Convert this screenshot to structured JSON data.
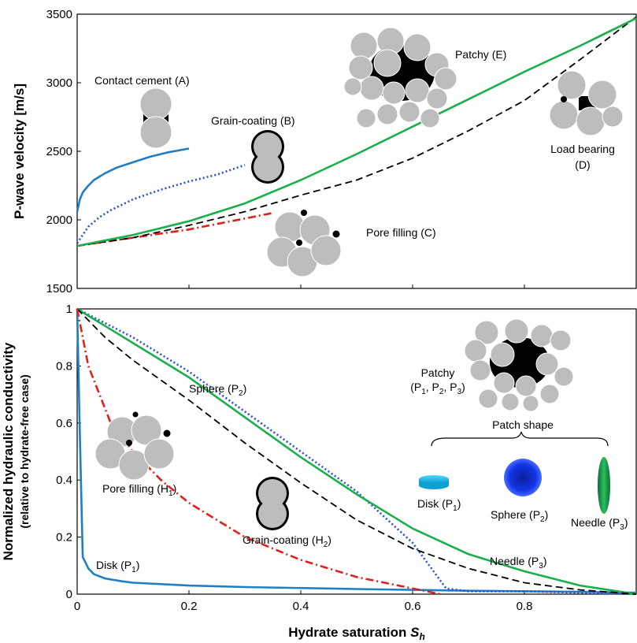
{
  "chart_data": [
    {
      "type": "line",
      "panel": "top",
      "ylabel": "P-wave velocity [m/s]",
      "xlim": [
        0,
        1
      ],
      "ylim": [
        1500,
        3500
      ],
      "yticks": [
        "1500",
        "2000",
        "2500",
        "3000",
        "3500"
      ],
      "series": [
        {
          "name": "Contact cement (A)",
          "color": "#1f7fc6",
          "dash": "solid",
          "x": [
            0,
            0.005,
            0.01,
            0.02,
            0.03,
            0.05,
            0.07,
            0.1,
            0.13,
            0.16,
            0.2
          ],
          "y": [
            2060,
            2150,
            2200,
            2250,
            2290,
            2340,
            2380,
            2420,
            2460,
            2490,
            2520
          ]
        },
        {
          "name": "Grain-coating (B)",
          "color": "#2a4fd6",
          "dash": "dotted",
          "x": [
            0,
            0.02,
            0.04,
            0.06,
            0.08,
            0.1,
            0.15,
            0.2,
            0.25,
            0.3
          ],
          "y": [
            1830,
            1950,
            2020,
            2070,
            2110,
            2150,
            2220,
            2280,
            2330,
            2400
          ]
        },
        {
          "name": "Pore filling (C)",
          "color": "#e0201c",
          "dash": "dashdot",
          "x": [
            0,
            0.05,
            0.1,
            0.15,
            0.2,
            0.25,
            0.3,
            0.35
          ],
          "y": [
            1810,
            1840,
            1870,
            1900,
            1930,
            1970,
            2010,
            2050
          ]
        },
        {
          "name": "Load bearing (D)",
          "color": "#000000",
          "dash": "dashed",
          "x": [
            0,
            0.1,
            0.2,
            0.3,
            0.4,
            0.5,
            0.6,
            0.7,
            0.8,
            0.9,
            1.0
          ],
          "y": [
            1810,
            1870,
            1960,
            2060,
            2180,
            2290,
            2450,
            2650,
            2870,
            3170,
            3480
          ]
        },
        {
          "name": "Patchy (E)",
          "color": "#19b04b",
          "dash": "solid",
          "x": [
            0,
            0.1,
            0.2,
            0.3,
            0.4,
            0.5,
            0.6,
            0.7,
            0.8,
            0.9,
            1.0
          ],
          "y": [
            1810,
            1890,
            1990,
            2120,
            2290,
            2480,
            2680,
            2880,
            3080,
            3270,
            3470
          ]
        }
      ],
      "annotations": {
        "contact_cement": "Contact cement (A)",
        "grain_coating": "Grain-coating (B)",
        "patchy": "Patchy (E)",
        "load_bearing_1": "Load bearing",
        "load_bearing_2": "(D)",
        "pore_filling": "Pore filling (C)"
      }
    },
    {
      "type": "line",
      "panel": "bottom",
      "xlabel": "Hydrate saturation",
      "xlabel_symbol": "S",
      "xlabel_sub": "h",
      "ylabel": "Normalized hydraulic conductivity",
      "ylabel2": "(relative to hydrate-free case)",
      "xlim": [
        0,
        1
      ],
      "ylim": [
        0,
        1
      ],
      "xticks": [
        "0",
        "0.2",
        "0.4",
        "0.6",
        "0.8"
      ],
      "yticks": [
        "0",
        "0.2",
        "0.4",
        "0.6",
        "0.8",
        "1"
      ],
      "series": [
        {
          "name": "Disk (P1)",
          "color": "#1f7fc6",
          "dash": "solid",
          "x": [
            0,
            0.005,
            0.01,
            0.015,
            0.02,
            0.03,
            0.05,
            0.08,
            0.1,
            0.2,
            0.3,
            0.5,
            0.7,
            0.9,
            1.0
          ],
          "y": [
            1.0,
            0.55,
            0.13,
            0.11,
            0.09,
            0.07,
            0.055,
            0.045,
            0.04,
            0.03,
            0.025,
            0.018,
            0.012,
            0.008,
            0.005
          ]
        },
        {
          "name": "Sphere (P2)",
          "color": "#2a4fd6",
          "dash": "dotted",
          "x": [
            0,
            0.05,
            0.1,
            0.2,
            0.3,
            0.4,
            0.5,
            0.55,
            0.6,
            0.63,
            0.66,
            0.7,
            0.8,
            0.9,
            1.0
          ],
          "y": [
            1.0,
            0.95,
            0.9,
            0.78,
            0.64,
            0.5,
            0.36,
            0.27,
            0.18,
            0.1,
            0.02,
            0.01,
            0.01,
            0.005,
            0.0
          ]
        },
        {
          "name": "Needle (P3)",
          "color": "#19b04b",
          "dash": "solid",
          "x": [
            0,
            0.05,
            0.1,
            0.2,
            0.3,
            0.4,
            0.5,
            0.6,
            0.7,
            0.8,
            0.9,
            1.0
          ],
          "y": [
            1.0,
            0.94,
            0.88,
            0.76,
            0.62,
            0.48,
            0.35,
            0.23,
            0.14,
            0.08,
            0.03,
            0.0
          ]
        },
        {
          "name": "Grain-coating (H2)",
          "color": "#000000",
          "dash": "dashed",
          "x": [
            0,
            0.05,
            0.1,
            0.2,
            0.3,
            0.4,
            0.5,
            0.6,
            0.7,
            0.8,
            0.9,
            1.0
          ],
          "y": [
            1.0,
            0.9,
            0.82,
            0.68,
            0.53,
            0.39,
            0.26,
            0.16,
            0.09,
            0.04,
            0.015,
            0.0
          ]
        },
        {
          "name": "Pore filling (H1)",
          "color": "#e0201c",
          "dash": "dashdot",
          "x": [
            0,
            0.02,
            0.04,
            0.06,
            0.1,
            0.15,
            0.2,
            0.3,
            0.4,
            0.5,
            0.6,
            0.65
          ],
          "y": [
            1.0,
            0.8,
            0.7,
            0.6,
            0.5,
            0.4,
            0.32,
            0.2,
            0.12,
            0.06,
            0.02,
            0.0
          ]
        }
      ],
      "annotations": {
        "sphere": "Sphere (P",
        "sphere_sub": "2",
        "pore_filling": "Pore filling (H",
        "pore_filling_sub": "1",
        "grain_coating": "Grain-coating (H",
        "grain_coating_sub": "2",
        "disk": "Disk (P",
        "disk_sub": "1",
        "needle": "Needle (P",
        "needle_sub": "3",
        "patchy_1": "Patchy",
        "patchy_2a": "(P",
        "patchy_2b": ", P",
        "patchy_2c": ", P",
        "patchy_sub1": "1",
        "patchy_sub2": "2",
        "patchy_sub3": "3",
        "patch_shape": "Patch shape",
        "inset_disk": "Disk (P",
        "inset_disk_sub": "1",
        "inset_sphere": "Sphere (P",
        "inset_sphere_sub": "2",
        "inset_needle": "Needle (P",
        "inset_needle_sub": "3",
        "paren_close": ")"
      }
    }
  ]
}
